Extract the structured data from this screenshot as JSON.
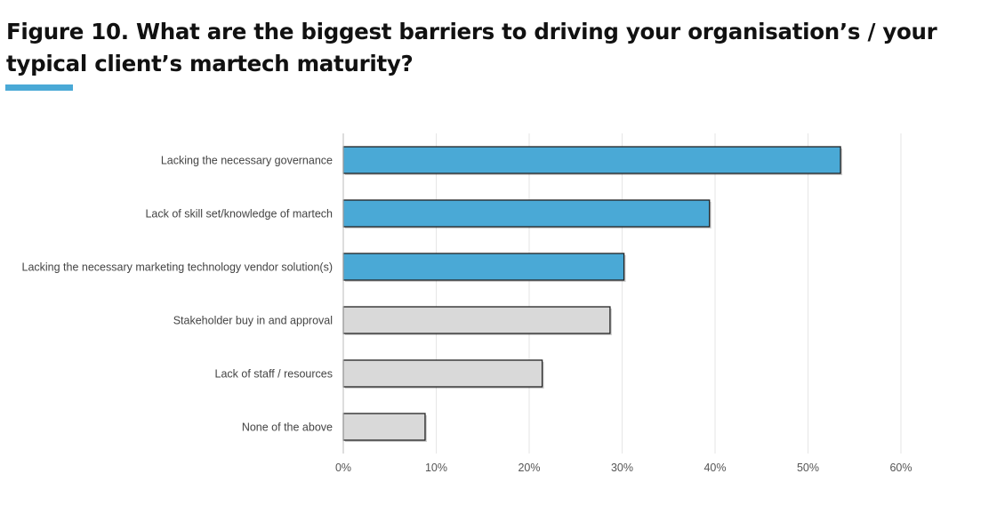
{
  "figure": {
    "title": "Figure 10. What are the biggest barriers to driving your organisation’s / your typical client’s martech maturity?"
  },
  "colors": {
    "accent": "#4aa9d6",
    "highlight_bar": "#4aa9d6",
    "neutral_bar": "#d9d9d9",
    "bar_stroke": "#222222",
    "grid": "#e6e6e6"
  },
  "chart_data": {
    "type": "bar",
    "orientation": "horizontal",
    "title": "Figure 10. What are the biggest barriers to driving your organisation’s / your typical client’s martech maturity?",
    "xlabel": "",
    "ylabel": "",
    "categories": [
      "Lacking the necessary governance",
      "Lack of skill set/knowledge of martech",
      "Lacking the necessary marketing technology vendor solution(s)",
      "Stakeholder buy in and approval",
      "Lack of staff / resources",
      "None of the above"
    ],
    "values": [
      53.5,
      39.4,
      30.2,
      28.7,
      21.4,
      8.8
    ],
    "highlighted": [
      true,
      true,
      true,
      false,
      false,
      false
    ],
    "xlim": [
      0,
      60
    ],
    "ticks": [
      0,
      10,
      20,
      30,
      40,
      50,
      60
    ],
    "tick_labels": [
      "0%",
      "10%",
      "20%",
      "30%",
      "40%",
      "50%",
      "60%"
    ],
    "grid": true,
    "legend": "none"
  }
}
